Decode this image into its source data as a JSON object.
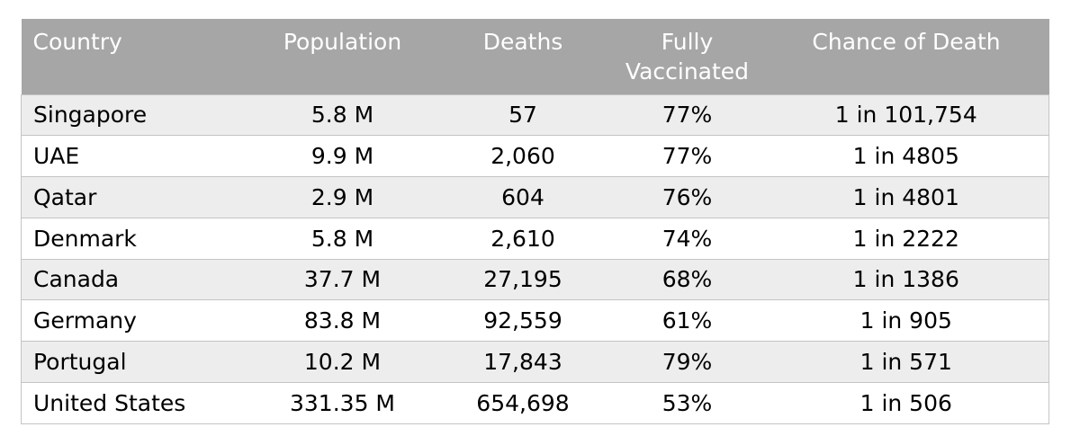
{
  "table": {
    "headers": [
      "Country",
      "Population",
      "Deaths",
      "Fully Vaccinated",
      "Chance of Death"
    ],
    "header_lines": {
      "fully_vaccinated": [
        "Fully",
        "Vaccinated"
      ]
    },
    "rows": [
      [
        "Singapore",
        "5.8 M",
        "57",
        "77%",
        "1 in 101,754"
      ],
      [
        "UAE",
        "9.9 M",
        "2,060",
        "77%",
        "1 in 4805"
      ],
      [
        "Qatar",
        "2.9 M",
        "604",
        "76%",
        "1 in 4801"
      ],
      [
        "Denmark",
        "5.8 M",
        "2,610",
        "74%",
        "1 in 2222"
      ],
      [
        "Canada",
        "37.7 M",
        "27,195",
        "68%",
        "1 in 1386"
      ],
      [
        "Germany",
        "83.8 M",
        "92,559",
        "61%",
        "1 in 905"
      ],
      [
        "Portugal",
        "10.2 M",
        "17,843",
        "79%",
        "1 in 571"
      ],
      [
        "United States",
        "331.35 M",
        "654,698",
        "53%",
        "1 in 506"
      ]
    ]
  },
  "colors": {
    "header_bg": "#a6a6a6",
    "header_text": "#ffffff",
    "row_alt_bg": "#ededed",
    "row_bg": "#ffffff",
    "border": "#c4c4c4"
  }
}
